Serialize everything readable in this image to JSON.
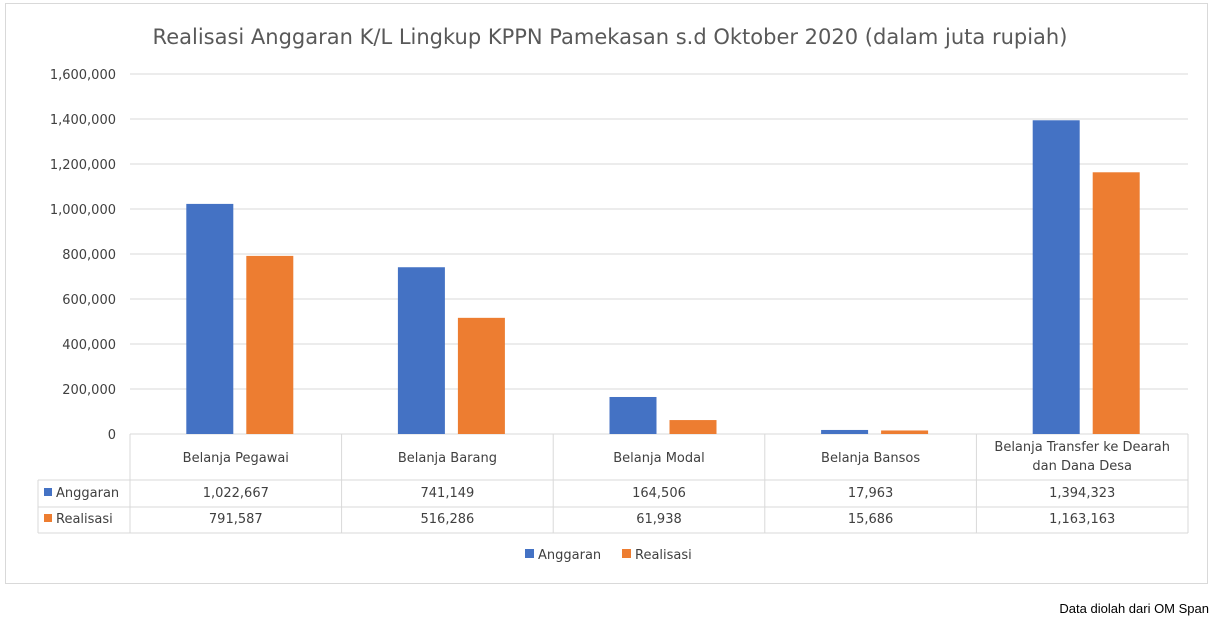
{
  "chart_data": {
    "type": "bar",
    "title": "Realisasi Anggaran K/L Lingkup KPPN Pamekasan s.d Oktober 2020 (dalam juta rupiah)",
    "categories": [
      [
        "Belanja Pegawai"
      ],
      [
        "Belanja Barang"
      ],
      [
        "Belanja Modal"
      ],
      [
        "Belanja Bansos"
      ],
      [
        "Belanja Transfer ke Dearah",
        "dan Dana Desa"
      ]
    ],
    "series": [
      {
        "name": "Anggaran",
        "color": "#4472c4",
        "values": [
          1022667,
          741149,
          164506,
          17963,
          1394323
        ],
        "labels": [
          "1,022,667",
          "741,149",
          "164,506",
          "17,963",
          "1,394,323"
        ]
      },
      {
        "name": "Realisasi",
        "color": "#ed7d31",
        "values": [
          791587,
          516286,
          61938,
          15686,
          1163163
        ],
        "labels": [
          "791,587",
          "516,286",
          "61,938",
          "15,686",
          "1,163,163"
        ]
      }
    ],
    "yticks": [
      "0",
      "200,000",
      "400,000",
      "600,000",
      "800,000",
      "1,000,000",
      "1,200,000",
      "1,400,000",
      "1,600,000"
    ],
    "ylim": [
      0,
      1600000
    ],
    "grid": true,
    "legend": "bottom",
    "data_table": true
  },
  "footer": {
    "source": "Data diolah dari OM Span"
  }
}
